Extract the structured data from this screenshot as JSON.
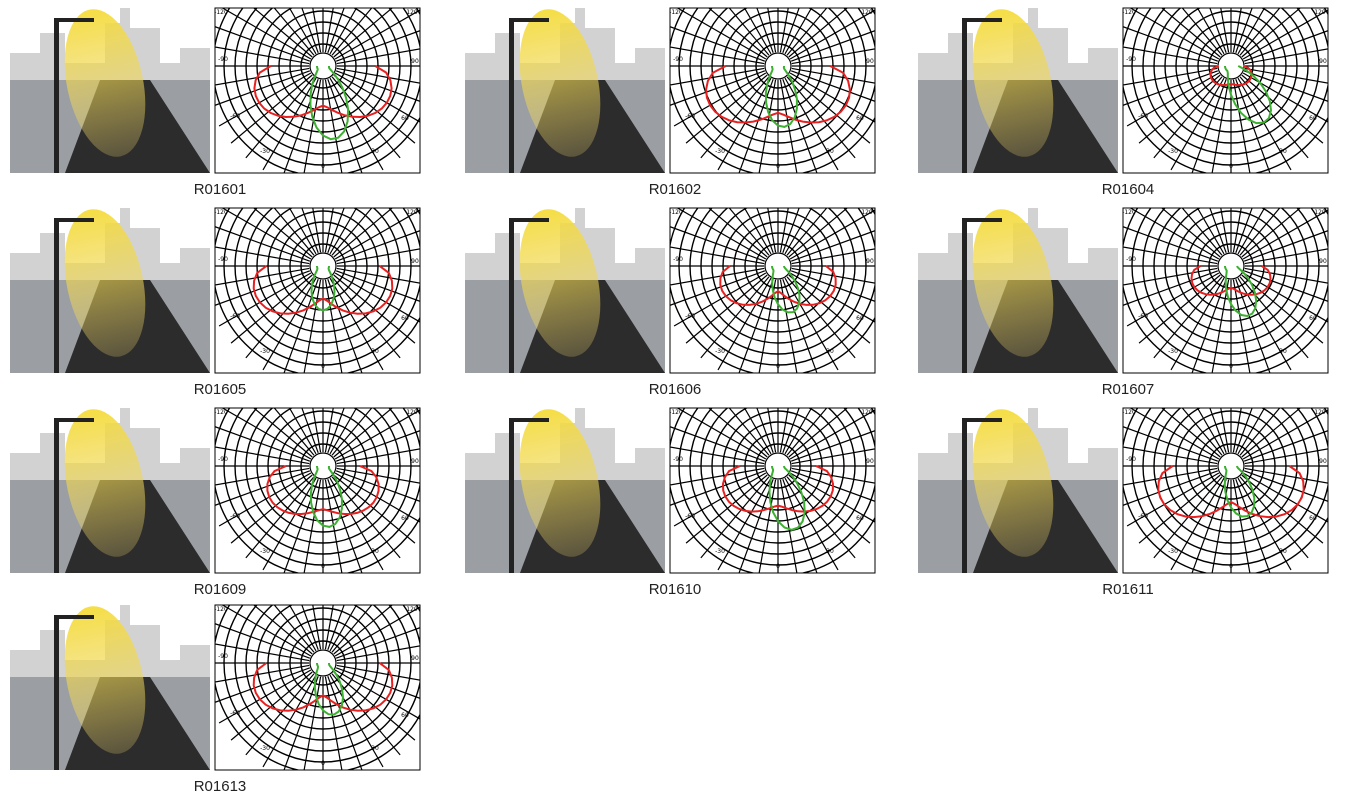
{
  "items": [
    {
      "caption": "R01601"
    },
    {
      "caption": "R01602"
    },
    {
      "caption": "R01604"
    },
    {
      "caption": "R01605"
    },
    {
      "caption": "R01606"
    },
    {
      "caption": "R01607"
    },
    {
      "caption": "R01609"
    },
    {
      "caption": "R01610"
    },
    {
      "caption": "R01611"
    },
    {
      "caption": "R01613"
    }
  ],
  "polar_labels": {
    "top_left": "-120",
    "top_right": "120",
    "left_mid": "-90",
    "right_mid": "90",
    "left_low": "-60",
    "right_low": "60",
    "bottom_left": "-30",
    "bottom_right": "30",
    "bottom": "0"
  }
}
